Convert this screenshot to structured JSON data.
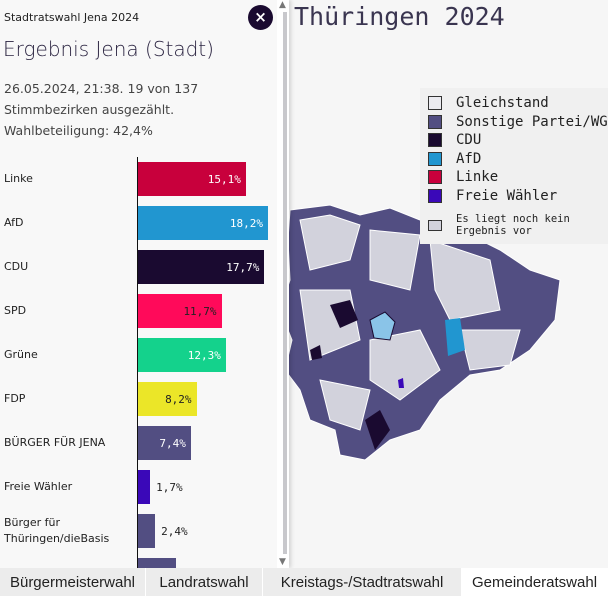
{
  "map": {
    "title": "Thüringen 2024"
  },
  "legend": [
    {
      "label": "Gleichstand",
      "color": "#ebebf0"
    },
    {
      "label": "Sonstige Partei/WG",
      "color": "#524e82"
    },
    {
      "label": "CDU",
      "color": "#1a0a30"
    },
    {
      "label": "AfD",
      "color": "#2196d0"
    },
    {
      "label": "Linke",
      "color": "#c8003c"
    },
    {
      "label": "Freie Wähler",
      "color": "#3a08b8"
    }
  ],
  "legend_none": {
    "label": "Es liegt noch kein Ergebnis vor",
    "color": "#d2d2dc"
  },
  "panel": {
    "subtitle": "Stadtratswahl Jena 2024",
    "title": "Ergebnis Jena (Stadt)",
    "info_line1": "26.05.2024, 21:38. 19 von 137",
    "info_line2": "Stimmbezirken ausgezählt.",
    "info_line3": "Wahlbeteiligung: 42,4%",
    "close_icon": "×",
    "results": [
      {
        "party": "Linke",
        "value": 15.1,
        "label": "15,1%",
        "color": "#c8003c",
        "inside": true
      },
      {
        "party": "AfD",
        "value": 18.2,
        "label": "18,2%",
        "color": "#2196d0",
        "inside": true
      },
      {
        "party": "CDU",
        "value": 17.7,
        "label": "17,7%",
        "color": "#1a0a30",
        "inside": true
      },
      {
        "party": "SPD",
        "value": 11.7,
        "label": "11,7%",
        "color": "#ff0a5a",
        "inside": true
      },
      {
        "party": "Grüne",
        "value": 12.3,
        "label": "12,3%",
        "color": "#14d28c",
        "inside": true
      },
      {
        "party": "FDP",
        "value": 8.2,
        "label": "8,2%",
        "color": "#ebe628",
        "inside": true
      },
      {
        "party": "BÜRGER FÜR JENA",
        "value": 7.4,
        "label": "7,4%",
        "color": "#524e82",
        "inside": true
      },
      {
        "party": "Freie Wähler",
        "value": 1.7,
        "label": "1,7%",
        "color": "#3a08b8",
        "inside": false
      },
      {
        "party": "Bürger für Thüringen/dieBasis",
        "value": 2.4,
        "label": "2,4%",
        "color": "#524e82",
        "inside": false
      },
      {
        "party": "",
        "value": 5.3,
        "label": "",
        "color": "#524e82",
        "inside": false
      }
    ]
  },
  "tabs": [
    {
      "label": "Bürgermeisterwahl",
      "active": false
    },
    {
      "label": "Landratswahl",
      "active": false
    },
    {
      "label": "Kreistags-/Stadtratswahl",
      "active": false
    },
    {
      "label": "Gemeinderatswahl",
      "active": true
    }
  ]
}
